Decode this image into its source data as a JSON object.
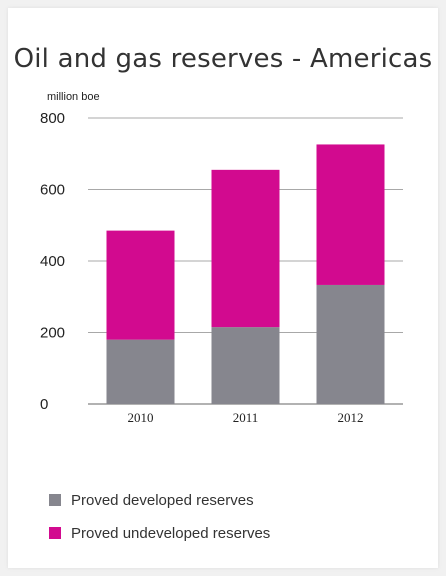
{
  "chart_data": {
    "type": "bar",
    "stacked": true,
    "title": "Oil and gas reserves - Americas",
    "unit_label": "million boe",
    "categories": [
      "2010",
      "2011",
      "2012"
    ],
    "series": [
      {
        "name": "Proved developed reserves",
        "color": "#86868e",
        "values": [
          180,
          215,
          333
        ]
      },
      {
        "name": "Proved undeveloped reserves",
        "color": "#d20a8f",
        "values": [
          305,
          440,
          393
        ]
      }
    ],
    "ylim": [
      0,
      800
    ],
    "yticks": [
      0,
      200,
      400,
      600,
      800
    ],
    "grid": true,
    "legend_position": "bottom-left"
  }
}
